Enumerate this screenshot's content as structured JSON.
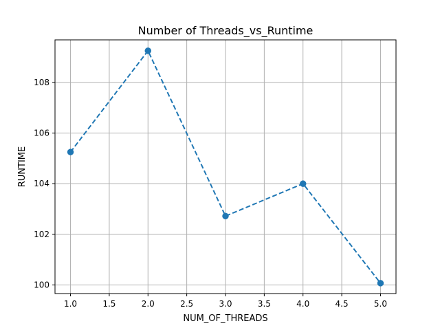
{
  "chart_data": {
    "type": "line",
    "title": "Number of Threads_vs_Runtime",
    "xlabel": "NUM_OF_THREADS",
    "ylabel": "RUNTIME",
    "x": [
      1.0,
      2.0,
      3.0,
      4.0,
      5.0
    ],
    "series": [
      {
        "values": [
          105.25,
          109.25,
          102.72,
          104.0,
          100.07
        ],
        "color": "#1f77b4",
        "line_style": "dashed",
        "marker": "circle"
      }
    ],
    "xlim": [
      0.8,
      5.2
    ],
    "ylim": [
      99.66,
      109.68
    ],
    "xticks": [
      "1.0",
      "1.5",
      "2.0",
      "2.5",
      "3.0",
      "3.5",
      "4.0",
      "4.5",
      "5.0"
    ],
    "yticks": [
      "100",
      "102",
      "104",
      "106",
      "108"
    ],
    "grid": true
  }
}
